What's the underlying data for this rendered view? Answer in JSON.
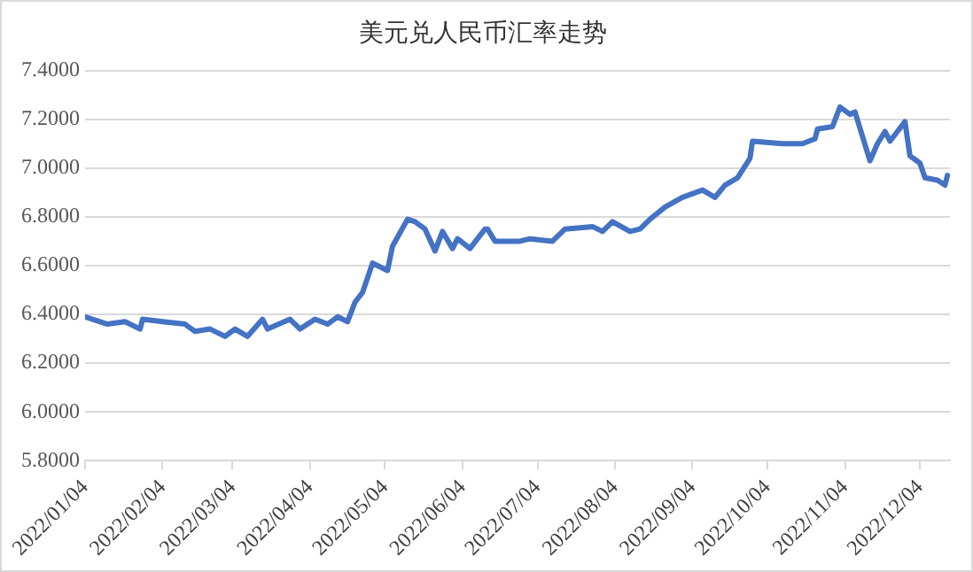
{
  "chart_data": {
    "type": "line",
    "title": "美元兑人民币汇率走势",
    "x": [
      "2022-01-04",
      "2022-01-13",
      "2022-01-20",
      "2022-01-26",
      "2022-01-27",
      "2022-02-04",
      "2022-02-13",
      "2022-02-17",
      "2022-02-23",
      "2022-03-01",
      "2022-03-05",
      "2022-03-10",
      "2022-03-16",
      "2022-03-18",
      "2022-03-27",
      "2022-03-31",
      "2022-04-06",
      "2022-04-11",
      "2022-04-15",
      "2022-04-19",
      "2022-04-22",
      "2022-04-25",
      "2022-04-27",
      "2022-04-29",
      "2022-05-03",
      "2022-05-05",
      "2022-05-07",
      "2022-05-13",
      "2022-05-16",
      "2022-05-20",
      "2022-05-24",
      "2022-05-27",
      "2022-05-31",
      "2022-06-02",
      "2022-06-07",
      "2022-06-13",
      "2022-06-14",
      "2022-06-17",
      "2022-06-27",
      "2022-07-01",
      "2022-07-10",
      "2022-07-15",
      "2022-07-26",
      "2022-07-30",
      "2022-08-03",
      "2022-08-10",
      "2022-08-14",
      "2022-08-18",
      "2022-08-24",
      "2022-08-31",
      "2022-09-08",
      "2022-09-13",
      "2022-09-17",
      "2022-09-22",
      "2022-09-27",
      "2022-09-28",
      "2022-10-10",
      "2022-10-18",
      "2022-10-23",
      "2022-10-24",
      "2022-10-30",
      "2022-11-02",
      "2022-11-06",
      "2022-11-08",
      "2022-11-14",
      "2022-11-17",
      "2022-11-20",
      "2022-11-22",
      "2022-11-28",
      "2022-11-30",
      "2022-12-04",
      "2022-12-06",
      "2022-12-11",
      "2022-12-14",
      "2022-12-15"
    ],
    "series": [
      {
        "color": "#4472c4",
        "values": [
          6.39,
          6.36,
          6.37,
          6.34,
          6.38,
          6.37,
          6.36,
          6.33,
          6.34,
          6.31,
          6.34,
          6.31,
          6.38,
          6.34,
          6.38,
          6.34,
          6.38,
          6.36,
          6.39,
          6.37,
          6.45,
          6.49,
          6.55,
          6.61,
          6.59,
          6.58,
          6.68,
          6.79,
          6.78,
          6.75,
          6.66,
          6.74,
          6.67,
          6.71,
          6.67,
          6.75,
          6.75,
          6.7,
          6.7,
          6.71,
          6.7,
          6.75,
          6.76,
          6.74,
          6.78,
          6.74,
          6.75,
          6.79,
          6.84,
          6.88,
          6.91,
          6.88,
          6.93,
          6.96,
          7.04,
          7.11,
          7.1,
          7.1,
          7.12,
          7.16,
          7.17,
          7.25,
          7.22,
          7.23,
          7.03,
          7.1,
          7.15,
          7.11,
          7.19,
          7.05,
          7.02,
          6.96,
          6.95,
          6.93,
          6.97
        ]
      }
    ],
    "xlim": [
      "2022-01-04",
      "2022-12-16"
    ],
    "xticks": [
      {
        "value": "2022-01-04",
        "label": "2022/01/04"
      },
      {
        "value": "2022-02-04",
        "label": "2022/02/04"
      },
      {
        "value": "2022-03-04",
        "label": "2022/03/04"
      },
      {
        "value": "2022-04-04",
        "label": "2022/04/04"
      },
      {
        "value": "2022-05-04",
        "label": "2022/05/04"
      },
      {
        "value": "2022-06-04",
        "label": "2022/06/04"
      },
      {
        "value": "2022-07-04",
        "label": "2022/07/04"
      },
      {
        "value": "2022-08-04",
        "label": "2022/08/04"
      },
      {
        "value": "2022-09-04",
        "label": "2022/09/04"
      },
      {
        "value": "2022-10-04",
        "label": "2022/10/04"
      },
      {
        "value": "2022-11-04",
        "label": "2022/11/04"
      },
      {
        "value": "2022-12-04",
        "label": "2022/12/04"
      }
    ],
    "ylim": [
      5.8,
      7.4
    ],
    "yticks": [
      {
        "value": 5.8,
        "label": "5.8000"
      },
      {
        "value": 6.0,
        "label": "6.0000"
      },
      {
        "value": 6.2,
        "label": "6.2000"
      },
      {
        "value": 6.4,
        "label": "6.4000"
      },
      {
        "value": 6.6,
        "label": "6.6000"
      },
      {
        "value": 6.8,
        "label": "6.8000"
      },
      {
        "value": 7.0,
        "label": "7.0000"
      },
      {
        "value": 7.2,
        "label": "7.2000"
      },
      {
        "value": 7.4,
        "label": "7.4000"
      }
    ],
    "grid": "y",
    "legend": false,
    "marker": "none",
    "line_style": "solid"
  }
}
